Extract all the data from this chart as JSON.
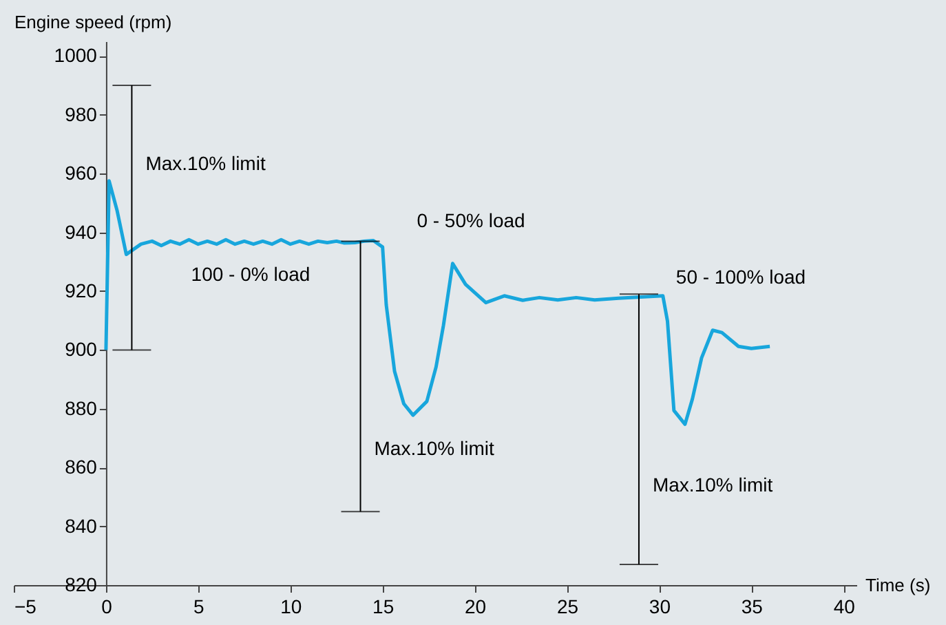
{
  "chart_data": {
    "type": "line",
    "xlabel": "Time (s)",
    "ylabel": "Engine speed  (rpm)",
    "xlim": [
      -5,
      40.7
    ],
    "xticks": [
      -5,
      0,
      5,
      10,
      15,
      20,
      25,
      30,
      35,
      40
    ],
    "ylim": [
      820,
      1005
    ],
    "yticks": [
      820,
      840,
      860,
      880,
      900,
      920,
      940,
      960,
      980,
      1000
    ],
    "grid": false,
    "legend": false,
    "marker": "none",
    "line_style": "solid",
    "series": [
      {
        "type": "line",
        "color": "#18a6dc",
        "x": [
          0,
          0.17,
          0.6,
          1.1,
          1.9,
          2.5,
          3,
          3.5,
          4,
          4.5,
          5,
          5.5,
          6,
          6.5,
          7,
          7.5,
          8,
          8.5,
          9,
          9.5,
          10,
          10.5,
          11,
          11.5,
          12,
          12.5,
          12.9,
          13.5,
          14,
          14.5,
          15,
          15.2,
          15.65,
          16.15,
          16.65,
          17.4,
          17.9,
          18.3,
          18.8,
          19.5,
          20.6,
          21.6,
          22.6,
          23.5,
          24.5,
          25.5,
          26.5,
          27.8,
          29,
          30.2,
          30.45,
          30.8,
          31.4,
          31.8,
          32.3,
          32.9,
          33.4,
          34.3,
          35,
          36
        ],
        "values": [
          900,
          957.5,
          947.5,
          932.5,
          936,
          937,
          935.5,
          937,
          936,
          937.5,
          936,
          937,
          936,
          937.5,
          936,
          937,
          936,
          937,
          936,
          937.5,
          936,
          937,
          936,
          937,
          936.5,
          937,
          936.4,
          936.5,
          937,
          937.2,
          935,
          915.3,
          892.7,
          881.7,
          877.8,
          882.5,
          894.2,
          908.3,
          929.4,
          922.3,
          916.1,
          918.4,
          916.9,
          917.8,
          917,
          917.8,
          917,
          917.6,
          918,
          918.4,
          909.8,
          879.4,
          874.7,
          883.3,
          897.3,
          906.7,
          905.9,
          901.2,
          900.5,
          901.2
        ]
      },
      {
        "type": "line",
        "name": "Max.10% limit",
        "color": "#000000",
        "x": [
          1.4,
          1.4
        ],
        "values": [
          900,
          990
        ]
      },
      {
        "type": "line",
        "name": "Max.10% limit",
        "color": "#000000",
        "x": [
          13.8,
          13.8
        ],
        "values": [
          845,
          937
        ]
      },
      {
        "type": "line",
        "name": "Max.10% limit",
        "color": "#000000",
        "x": [
          28.9,
          28.9
        ],
        "values": [
          827,
          919
        ]
      }
    ],
    "annotations": [
      "100 - 0% load",
      "0 - 50% load",
      "50 - 100% load"
    ]
  }
}
